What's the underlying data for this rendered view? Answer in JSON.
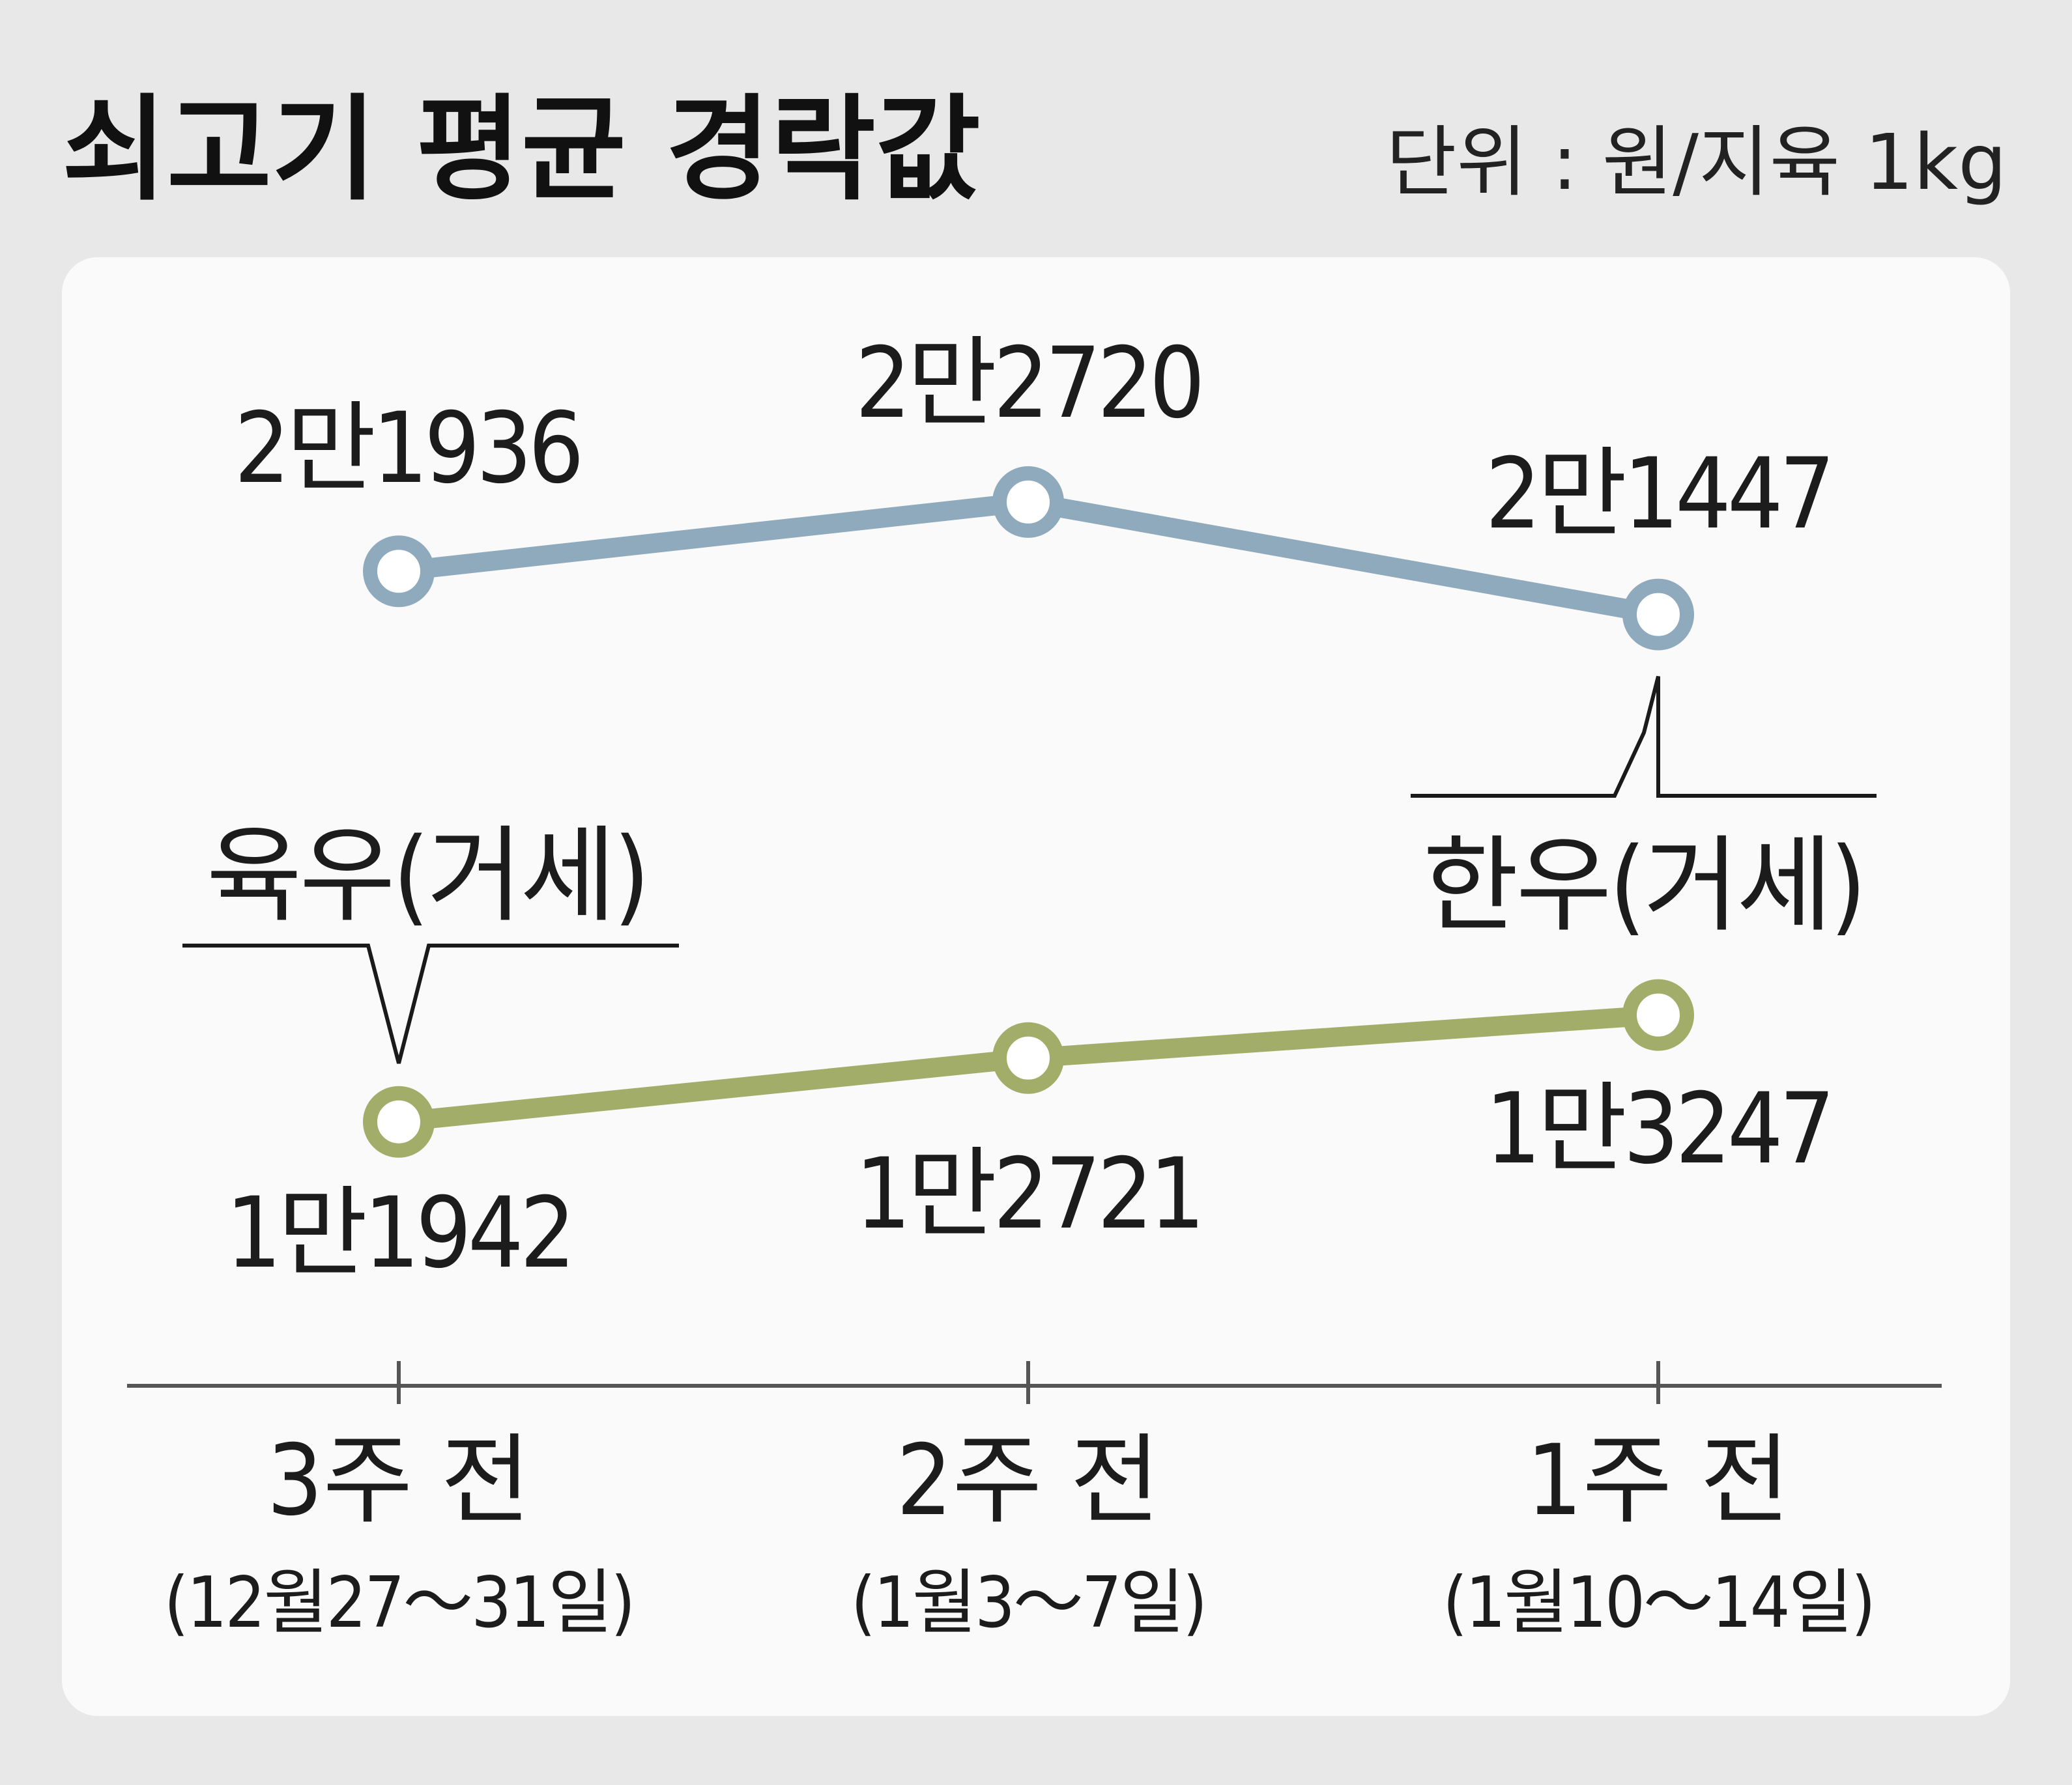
{
  "header": {
    "title": "쇠고기 평균 경락값",
    "unit": "단위 : 원/지육 1kg"
  },
  "colors": {
    "background": "#e8e8e8",
    "panel": "#fafafa",
    "hanwoo": "#8fa9bd",
    "yukwoo": "#a3ad6a",
    "axis": "#555555"
  },
  "chart_data": {
    "type": "line",
    "categories": [
      {
        "label": "3주 전",
        "range": "(12월27～31일)"
      },
      {
        "label": "2주 전",
        "range": "(1월3～7일)"
      },
      {
        "label": "1주 전",
        "range": "(1월10～14일)"
      }
    ],
    "series": [
      {
        "name": "한우(거세)",
        "values": [
          21936,
          22720,
          21447
        ],
        "value_labels": [
          "2만1936",
          "2만2720",
          "2만1447"
        ]
      },
      {
        "name": "육우(거세)",
        "values": [
          11942,
          12721,
          13247
        ],
        "value_labels": [
          "1만1942",
          "1만2721",
          "1만3247"
        ]
      }
    ],
    "title": "쇠고기 평균 경락값",
    "xlabel": "",
    "ylabel": "",
    "grid": false,
    "legend": "inline-callouts"
  }
}
